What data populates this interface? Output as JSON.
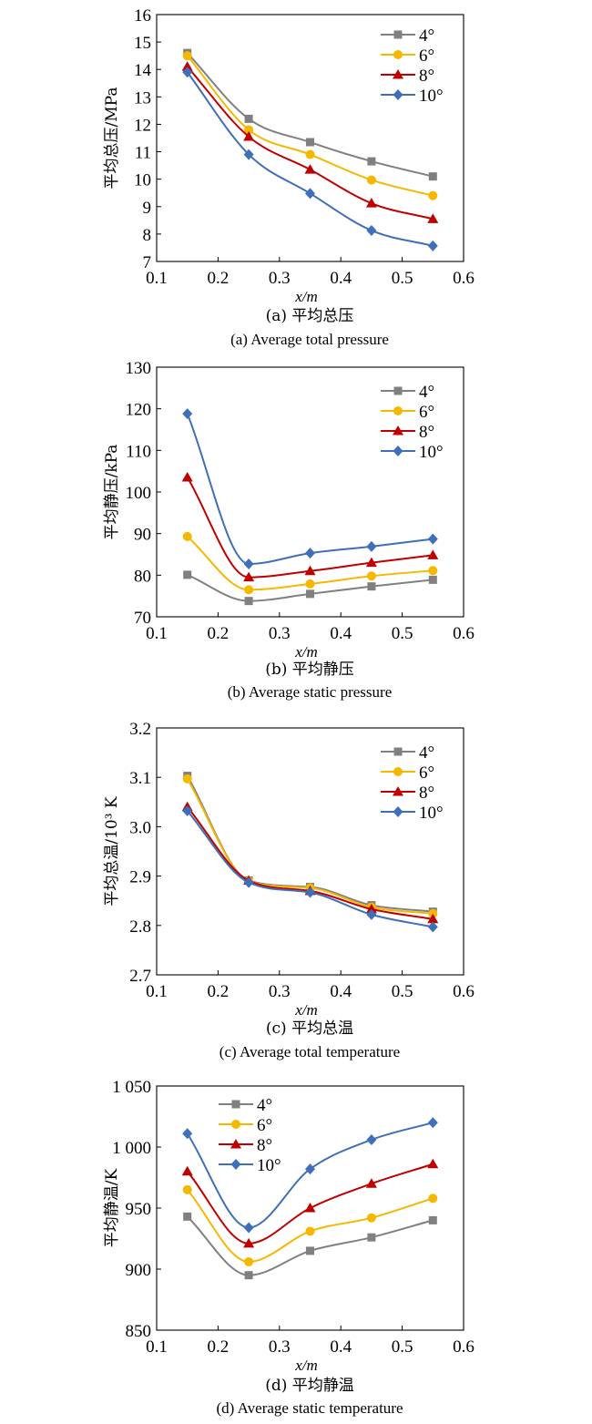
{
  "colors": {
    "s4": "#808080",
    "s6": "#f5b800",
    "s8": "#c00000",
    "s10": "#3f6fb8"
  },
  "chart_data": [
    {
      "type": "line",
      "xlabel": "x/m",
      "ylabel": "平均总压/MPa",
      "caption_zh": "(a) 平均总压",
      "caption_en": "(a) Average total pressure",
      "xlim": [
        0.1,
        0.6
      ],
      "ylim": [
        7,
        16
      ],
      "xticks": [
        "0.1",
        "0.2",
        "0.3",
        "0.4",
        "0.5",
        "0.6"
      ],
      "yticks": [
        "7",
        "8",
        "9",
        "10",
        "11",
        "12",
        "13",
        "14",
        "15",
        "16"
      ],
      "legend": "top-right",
      "x": [
        0.15,
        0.25,
        0.35,
        0.45,
        0.55
      ],
      "series": [
        {
          "name": "4°",
          "marker": "square",
          "values": [
            14.6,
            12.2,
            11.35,
            10.65,
            10.1
          ]
        },
        {
          "name": "6°",
          "marker": "circle",
          "values": [
            14.5,
            11.8,
            10.9,
            9.97,
            9.4
          ]
        },
        {
          "name": "8°",
          "marker": "triangle",
          "values": [
            14.1,
            11.55,
            10.35,
            9.12,
            8.55
          ]
        },
        {
          "name": "10°",
          "marker": "diamond",
          "values": [
            13.9,
            10.9,
            9.48,
            8.13,
            7.57
          ]
        }
      ]
    },
    {
      "type": "line",
      "xlabel": "x/m",
      "ylabel": "平均静压/kPa",
      "caption_zh": "(b) 平均静压",
      "caption_en": "(b) Average static pressure",
      "xlim": [
        0.1,
        0.6
      ],
      "ylim": [
        70,
        130
      ],
      "xticks": [
        "0.1",
        "0.2",
        "0.3",
        "0.4",
        "0.5",
        "0.6"
      ],
      "yticks": [
        "70",
        "80",
        "90",
        "100",
        "110",
        "120",
        "130"
      ],
      "legend": "top-right",
      "x": [
        0.15,
        0.25,
        0.35,
        0.45,
        0.55
      ],
      "series": [
        {
          "name": "4°",
          "marker": "square",
          "values": [
            80.1,
            73.8,
            75.5,
            77.3,
            78.9
          ]
        },
        {
          "name": "6°",
          "marker": "circle",
          "values": [
            89.3,
            76.5,
            77.9,
            79.8,
            81.1
          ]
        },
        {
          "name": "8°",
          "marker": "triangle",
          "values": [
            103.5,
            79.5,
            81.0,
            83.0,
            84.8
          ]
        },
        {
          "name": "10°",
          "marker": "diamond",
          "values": [
            118.8,
            82.7,
            85.3,
            86.9,
            88.7
          ]
        }
      ]
    },
    {
      "type": "line",
      "xlabel": "x/m",
      "ylabel": "平均总温/10³ K",
      "caption_zh": "(c) 平均总温",
      "caption_en": "(c) Average total temperature",
      "xlim": [
        0.1,
        0.6
      ],
      "ylim": [
        2.7,
        3.2
      ],
      "xticks": [
        "0.1",
        "0.2",
        "0.3",
        "0.4",
        "0.5",
        "0.6"
      ],
      "yticks": [
        "2.7",
        "2.8",
        "2.9",
        "3.0",
        "3.1",
        "3.2"
      ],
      "legend": "top-right",
      "x": [
        0.15,
        0.25,
        0.35,
        0.45,
        0.55
      ],
      "series": [
        {
          "name": "4°",
          "marker": "square",
          "values": [
            3.103,
            2.891,
            2.878,
            2.841,
            2.828
          ]
        },
        {
          "name": "6°",
          "marker": "circle",
          "values": [
            3.097,
            2.89,
            2.876,
            2.837,
            2.824
          ]
        },
        {
          "name": "8°",
          "marker": "triangle",
          "values": [
            3.04,
            2.891,
            2.87,
            2.833,
            2.813
          ]
        },
        {
          "name": "10°",
          "marker": "diamond",
          "values": [
            3.032,
            2.887,
            2.867,
            2.822,
            2.797
          ]
        }
      ]
    },
    {
      "type": "line",
      "xlabel": "x/m",
      "ylabel": "平均静温/K",
      "caption_zh": "(d) 平均静温",
      "caption_en": "(d) Average static temperature",
      "xlim": [
        0.1,
        0.6
      ],
      "ylim": [
        850,
        1050
      ],
      "xticks": [
        "0.1",
        "0.2",
        "0.3",
        "0.4",
        "0.5",
        "0.6"
      ],
      "yticks": [
        "850",
        "900",
        "950",
        "1 000",
        "1 050"
      ],
      "legend": "top-left",
      "x": [
        0.15,
        0.25,
        0.35,
        0.45,
        0.55
      ],
      "series": [
        {
          "name": "4°",
          "marker": "square",
          "values": [
            943,
            895,
            915,
            926,
            940
          ]
        },
        {
          "name": "6°",
          "marker": "circle",
          "values": [
            965,
            906,
            931,
            942,
            958
          ]
        },
        {
          "name": "8°",
          "marker": "triangle",
          "values": [
            980,
            921,
            950,
            970,
            986
          ]
        },
        {
          "name": "10°",
          "marker": "diamond",
          "values": [
            1011,
            934,
            982,
            1006,
            1020
          ]
        }
      ]
    }
  ]
}
